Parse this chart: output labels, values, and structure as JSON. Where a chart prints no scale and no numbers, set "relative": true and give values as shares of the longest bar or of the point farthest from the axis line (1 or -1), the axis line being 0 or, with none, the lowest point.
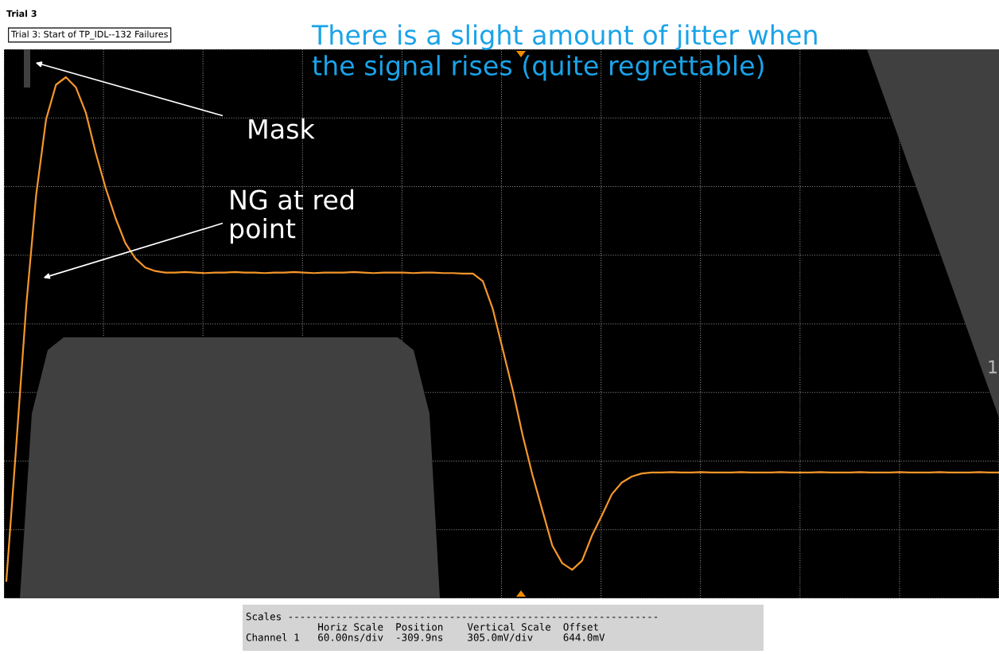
{
  "chart_data": {
    "type": "line",
    "relative": true,
    "title": "Trial 3",
    "subtitle": "Trial 3: Start of TP_IDL--132 Failures",
    "categories": [
      null,
      null,
      null,
      null,
      null,
      null,
      null,
      null,
      null,
      null,
      null,
      null,
      null,
      null,
      null,
      null,
      null,
      null,
      null,
      null,
      null,
      null,
      null,
      null,
      null,
      null,
      null,
      null,
      null,
      null,
      null,
      null,
      null,
      null,
      null,
      null,
      null,
      null,
      null,
      null,
      null,
      null,
      null,
      null,
      null,
      null,
      null,
      null,
      null,
      null,
      null,
      null,
      null,
      null,
      null,
      null,
      null,
      null,
      null,
      null,
      null,
      null,
      null,
      null,
      null,
      null,
      null,
      null,
      null,
      null,
      null,
      null,
      null,
      null,
      null,
      null,
      null,
      null,
      null,
      null,
      null,
      null,
      null,
      null,
      null,
      null,
      null,
      null,
      null,
      null,
      null,
      null,
      null,
      null,
      null,
      null,
      null,
      null,
      null,
      null,
      null
    ],
    "series": [
      {
        "color": "#f5962a",
        "values": [
          0,
          0.27,
          0.545,
          0.766,
          0.916,
          0.985,
          1.0,
          0.98,
          0.93,
          0.85,
          0.78,
          0.72,
          0.67,
          0.64,
          0.622,
          0.615,
          0.612,
          0.612,
          0.613,
          0.612,
          0.611,
          0.612,
          0.612,
          0.613,
          0.612,
          0.612,
          0.611,
          0.612,
          0.612,
          0.613,
          0.612,
          0.611,
          0.612,
          0.612,
          0.612,
          0.613,
          0.612,
          0.611,
          0.612,
          0.612,
          0.612,
          0.611,
          0.612,
          0.612,
          0.611,
          0.611,
          0.61,
          0.61,
          0.595,
          0.54,
          0.46,
          0.38,
          0.29,
          0.21,
          0.14,
          0.07,
          0.035,
          0.022,
          0.04,
          0.09,
          0.13,
          0.172,
          0.195,
          0.207,
          0.213,
          0.215,
          0.215,
          0.216,
          0.215,
          0.215,
          0.216,
          0.215,
          0.215,
          0.215,
          0.216,
          0.215,
          0.215,
          0.215,
          0.216,
          0.215,
          0.215,
          0.215,
          0.216,
          0.215,
          0.215,
          0.215,
          0.216,
          0.215,
          0.215,
          0.215,
          0.216,
          0.215,
          0.215,
          0.215,
          0.216,
          0.215,
          0.215,
          0.215,
          0.216,
          0.215,
          0.215
        ]
      }
    ],
    "grid": true,
    "tick_labels": false,
    "marker": "none",
    "line_style": "solid",
    "annotations": [
      "There is a slight amount of jitter when\nthe signal rises (quite regrettable)",
      "Mask",
      "NG at red\npoint",
      "1",
      "Scales --------------------------------------------------------------\n            Horiz Scale  Position    Vertical Scale  Offset\nChannel 1   60.00ns/div  -309.9ns    305.0mV/div     644.0mV"
    ]
  }
}
